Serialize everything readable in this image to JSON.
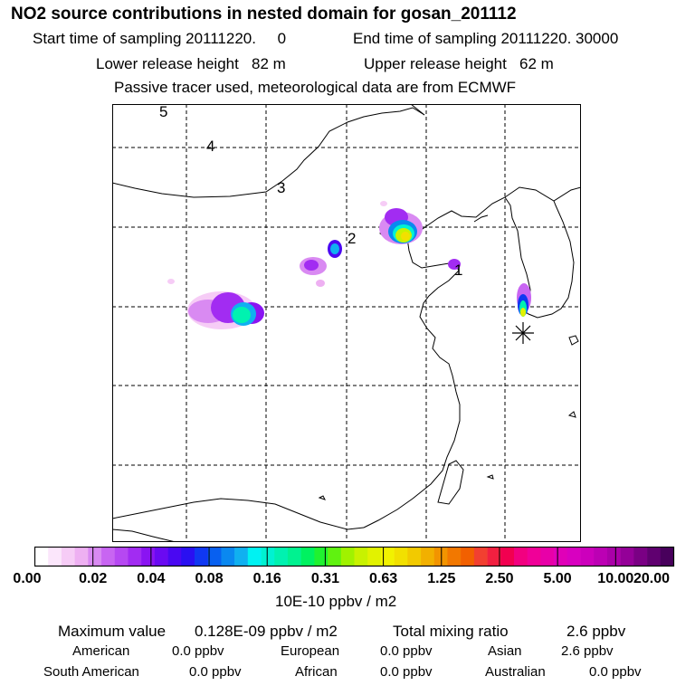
{
  "title": "NO2 source contributions in nested domain for gosan_201112",
  "header": {
    "start_time": "Start time of sampling 20111220.     0",
    "end_time": "End time of sampling 20111220. 30000",
    "lower_release": "Lower release height   82 m",
    "upper_release": "Upper release height   62 m",
    "tracer_note": "Passive tracer used, meteorological data are from ECMWF"
  },
  "map": {
    "trajectory_labels": [
      "5",
      "4",
      "3",
      "2",
      "1"
    ],
    "receptor_marker": "asterisk"
  },
  "colorbar": {
    "unit": "10E-10 ppbv / m2",
    "ticks": [
      "0.00",
      "0.02",
      "0.04",
      "0.08",
      "0.16",
      "0.31",
      "0.63",
      "1.25",
      "2.50",
      "5.00",
      "10.00",
      "20.00"
    ],
    "colors": [
      "#ffffff",
      "#fbe6fb",
      "#f6ccf6",
      "#eeb0f2",
      "#d98af2",
      "#c865f2",
      "#b648f2",
      "#a22cf2",
      "#8a14f2",
      "#6a0af2",
      "#4a08f2",
      "#2a10f2",
      "#1038f2",
      "#0860f0",
      "#0a88f0",
      "#10b0f0",
      "#00f2f2",
      "#00f2d2",
      "#00f2b0",
      "#00f290",
      "#00f260",
      "#20f230",
      "#60f210",
      "#a0f200",
      "#c8f200",
      "#e2f200",
      "#f2f200",
      "#f2e000",
      "#f2ca00",
      "#f2b000",
      "#f29400",
      "#f27800",
      "#f26000",
      "#f24030",
      "#f22040",
      "#f20050",
      "#f20080",
      "#f00098",
      "#e800a8",
      "#e000b8",
      "#d800c0",
      "#cc00bc",
      "#bc00b4",
      "#aa00a8",
      "#940098",
      "#7a0084",
      "#600070",
      "#48005c"
    ]
  },
  "summary": {
    "max_value_label": "Maximum value",
    "max_value": "0.128E-09 ppbv / m2",
    "total_label": "Total mixing ratio",
    "total_value": "2.6 ppbv"
  },
  "regions": [
    {
      "label": "American",
      "value": "0.0 ppbv"
    },
    {
      "label": "European",
      "value": "0.0 ppbv"
    },
    {
      "label": "Asian",
      "value": "2.6 ppbv"
    },
    {
      "label": "South American",
      "value": "0.0 ppbv"
    },
    {
      "label": "African",
      "value": "0.0 ppbv"
    },
    {
      "label": "Australian",
      "value": "0.0 ppbv"
    }
  ]
}
